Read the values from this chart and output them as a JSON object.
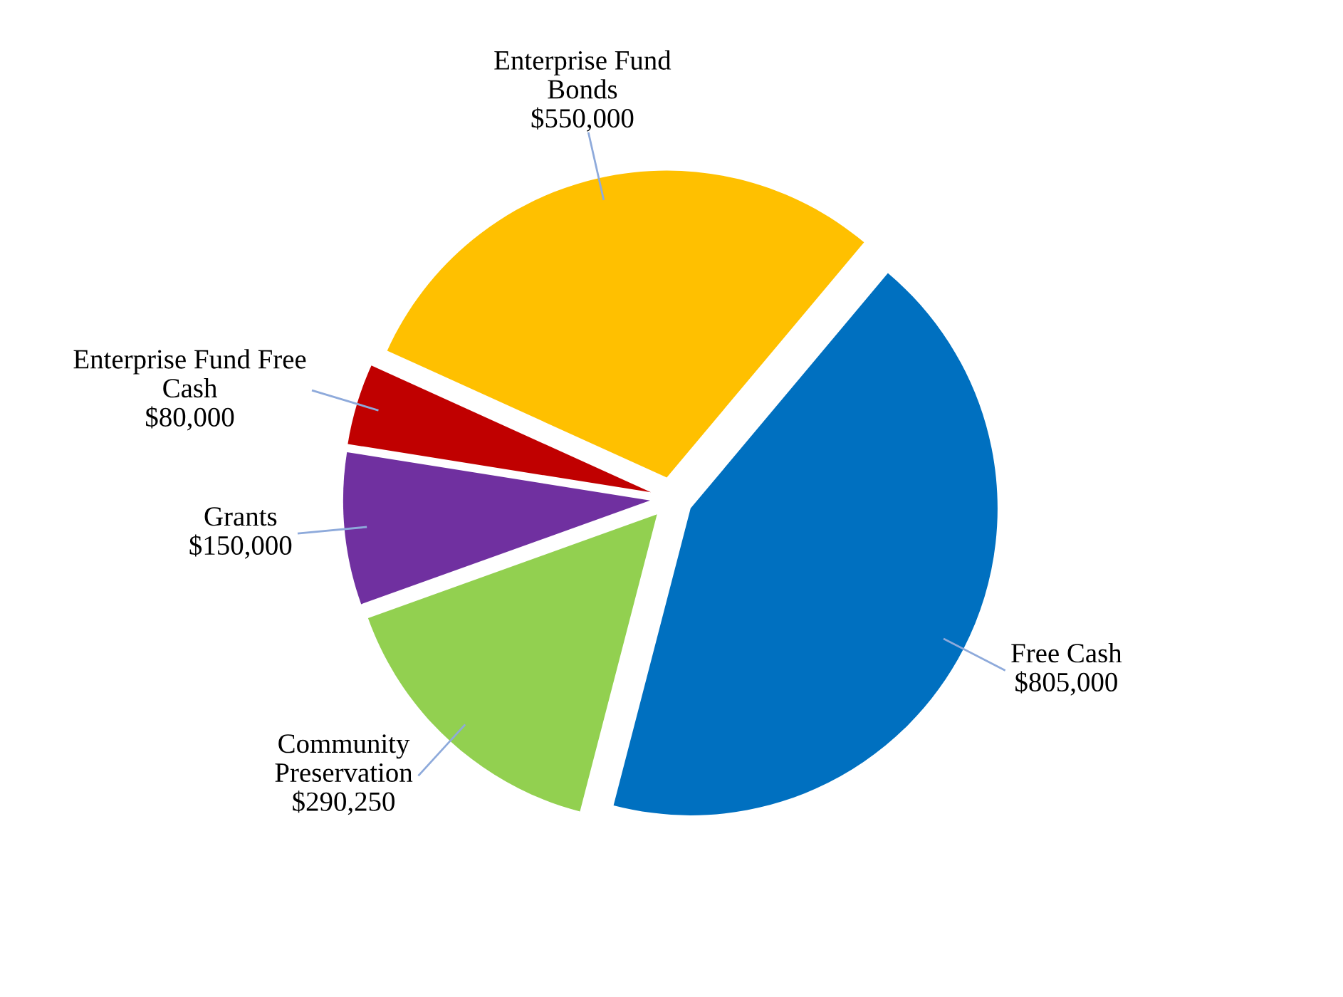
{
  "chart_data": {
    "type": "pie",
    "categories": [
      "Free Cash",
      "Community\nPreservation",
      "Grants",
      "Enterprise Fund Free\nCash",
      "Enterprise Fund\nBonds"
    ],
    "values": [
      805000,
      290250,
      150000,
      80000,
      550000
    ],
    "value_labels": [
      "$805,000",
      "$290,250",
      "$150,000",
      "$80,000",
      "$550,000"
    ],
    "colors": [
      "#0070c0",
      "#92d050",
      "#7030a0",
      "#c00000",
      "#ffc000"
    ],
    "legend": false
  }
}
